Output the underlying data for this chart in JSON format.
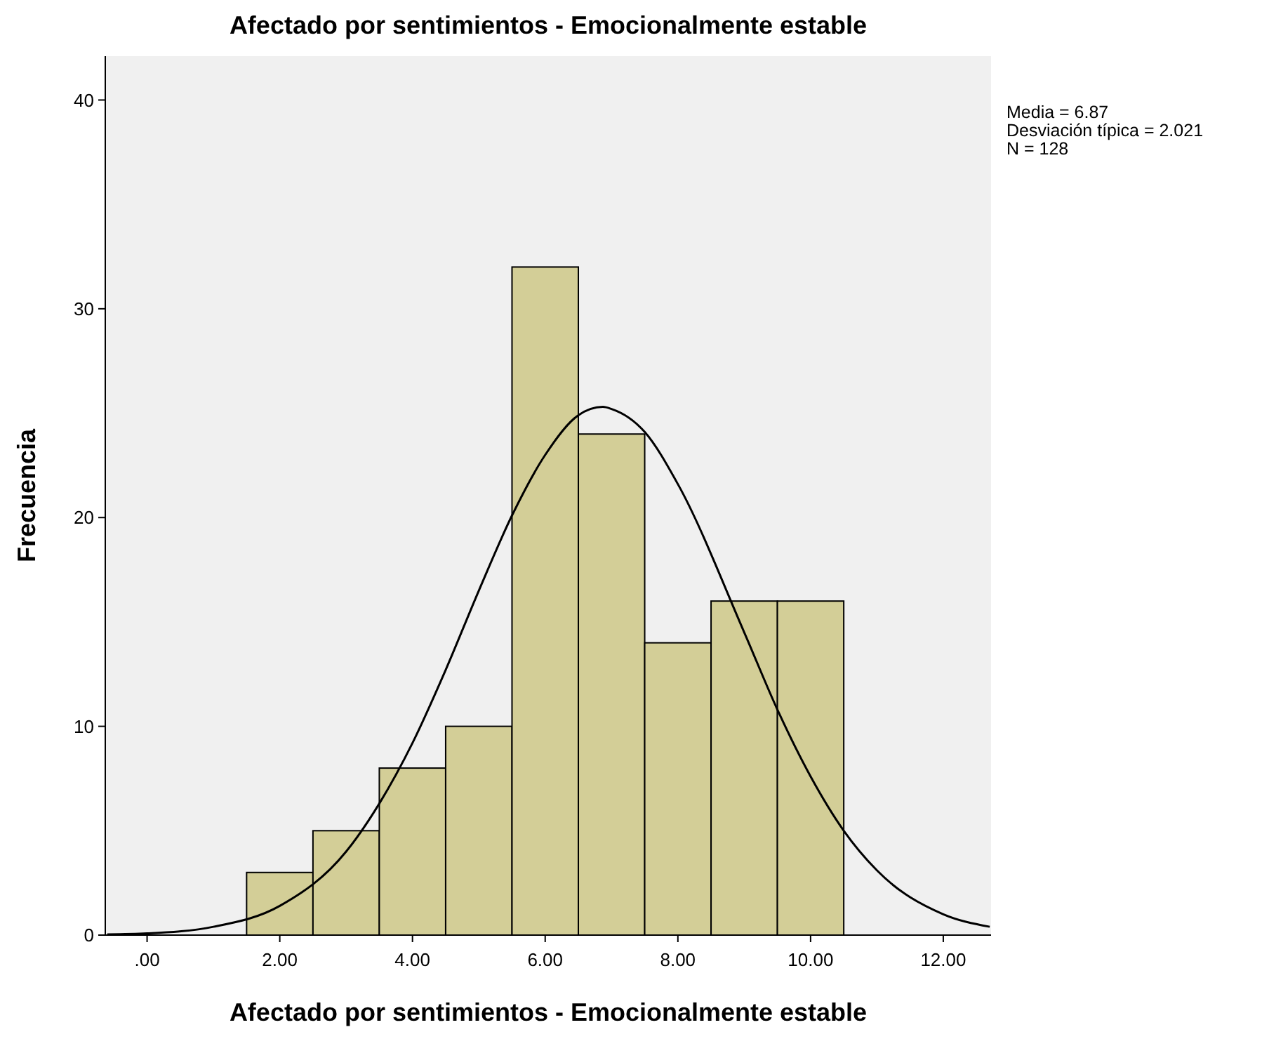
{
  "chart_data": {
    "type": "histogram",
    "title": "Afectado por sentimientos - Emocionalmente estable",
    "xlabel": "Afectado por sentimientos - Emocionalmente estable",
    "ylabel": "Frecuencia",
    "bins": [
      1.5,
      2.5,
      3.5,
      4.5,
      5.5,
      6.5,
      7.5,
      8.5,
      9.5,
      10.5
    ],
    "values": [
      3,
      5,
      8,
      10,
      32,
      24,
      14,
      16,
      16
    ],
    "color": "#d3ce97",
    "series": [
      {
        "type": "line",
        "color": "#000000",
        "x": [
          -0.6,
          0,
          1,
          2,
          3,
          3.5,
          4,
          4.5,
          5,
          5.5,
          6,
          6.5,
          6.87,
          7,
          7.5,
          8,
          9,
          9.5,
          10,
          10.5,
          11,
          12,
          12.7
        ],
        "values": [
          0.03,
          0.08,
          0.4,
          1.4,
          4.0,
          6.3,
          9.2,
          12.7,
          16.5,
          20.1,
          23.0,
          24.9,
          25.3,
          25.2,
          24.1,
          21.6,
          14.5,
          10.8,
          7.6,
          5.0,
          3.1,
          1.0,
          0.4
        ]
      }
    ],
    "xlim": [
      -0.63,
      12.72
    ],
    "ylim": [
      0,
      42.1
    ],
    "xticks": [
      {
        "value": 0,
        "label": ".00"
      },
      {
        "value": 2,
        "label": "2.00"
      },
      {
        "value": 4,
        "label": "4.00"
      },
      {
        "value": 6,
        "label": "6.00"
      },
      {
        "value": 8,
        "label": "8.00"
      },
      {
        "value": 10,
        "label": "10.00"
      },
      {
        "value": 12,
        "label": "12.00"
      }
    ],
    "yticks": [
      0,
      10,
      20,
      30,
      40
    ],
    "grid": false,
    "annotations": [
      "Media = 6.87",
      "Desviación típica = 2.021",
      "N = 128"
    ]
  }
}
